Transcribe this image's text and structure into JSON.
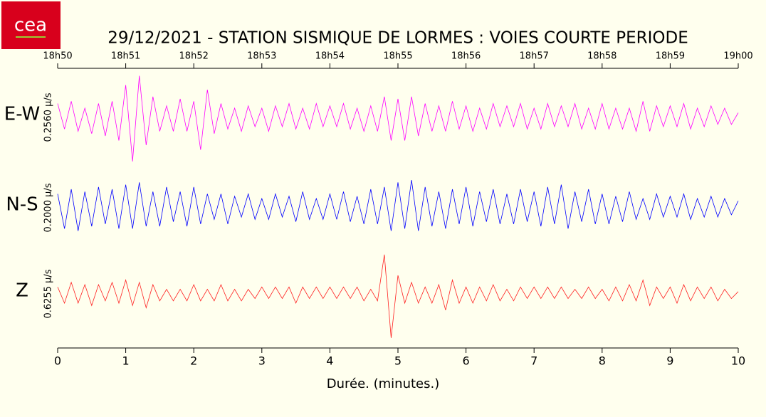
{
  "chart_data": {
    "type": "line",
    "logo": "cea",
    "title": "29/12/2021  -  STATION SISMIQUE DE LORMES : VOIES COURTE PERIODE",
    "xlabel": "Durée.  (minutes.)",
    "xlim": [
      0,
      10
    ],
    "xticks": [
      0,
      1,
      2,
      3,
      4,
      5,
      6,
      7,
      8,
      9,
      10
    ],
    "top_xticks": [
      {
        "value": 0,
        "label": "18h50"
      },
      {
        "value": 1,
        "label": "18h51"
      },
      {
        "value": 2,
        "label": "18h52"
      },
      {
        "value": 3,
        "label": "18h53"
      },
      {
        "value": 4,
        "label": "18h54"
      },
      {
        "value": 5,
        "label": "18h55"
      },
      {
        "value": 6,
        "label": "18h56"
      },
      {
        "value": 7,
        "label": "18h57"
      },
      {
        "value": 8,
        "label": "18h58"
      },
      {
        "value": 9,
        "label": "18h59"
      },
      {
        "value": 10,
        "label": "19h00"
      }
    ],
    "ylim": [
      -1,
      1
    ],
    "x": [
      0,
      0.1,
      0.2,
      0.3,
      0.4,
      0.5,
      0.6,
      0.7,
      0.8,
      0.9,
      1,
      1.1,
      1.2,
      1.3,
      1.4,
      1.5,
      1.6,
      1.7,
      1.8,
      1.9,
      2,
      2.1,
      2.2,
      2.3,
      2.4,
      2.5,
      2.6,
      2.7,
      2.8,
      2.9,
      3,
      3.1,
      3.2,
      3.3,
      3.4,
      3.5,
      3.6,
      3.7,
      3.8,
      3.9,
      4,
      4.1,
      4.2,
      4.3,
      4.4,
      4.5,
      4.6,
      4.7,
      4.8,
      4.9,
      5,
      5.1,
      5.2,
      5.3,
      5.4,
      5.5,
      5.6,
      5.7,
      5.8,
      5.9,
      6,
      6.1,
      6.2,
      6.3,
      6.4,
      6.5,
      6.6,
      6.7,
      6.8,
      6.9,
      7,
      7.1,
      7.2,
      7.3,
      7.4,
      7.5,
      7.6,
      7.7,
      7.8,
      7.9,
      8,
      8.1,
      8.2,
      8.3,
      8.4,
      8.5,
      8.6,
      8.7,
      8.8,
      8.9,
      9,
      9.1,
      9.2,
      9.3,
      9.4,
      9.5,
      9.6,
      9.7,
      9.8,
      9.9,
      10
    ],
    "series": [
      {
        "name": "E-W",
        "color": "#ff00ff",
        "scale_label": "0.2560 µ/s",
        "values": [
          0.3,
          -0.25,
          0.35,
          -0.3,
          0.2,
          -0.35,
          0.3,
          -0.4,
          0.35,
          -0.5,
          0.7,
          -0.95,
          0.9,
          -0.6,
          0.45,
          -0.3,
          0.25,
          -0.3,
          0.4,
          -0.3,
          0.35,
          -0.7,
          0.6,
          -0.35,
          0.3,
          -0.25,
          0.2,
          -0.3,
          0.25,
          -0.2,
          0.2,
          -0.3,
          0.25,
          -0.2,
          0.3,
          -0.25,
          0.2,
          -0.25,
          0.3,
          -0.2,
          0.25,
          -0.2,
          0.3,
          -0.25,
          0.2,
          -0.3,
          0.25,
          -0.3,
          0.45,
          -0.5,
          0.4,
          -0.5,
          0.45,
          -0.4,
          0.3,
          -0.3,
          0.25,
          -0.3,
          0.35,
          -0.25,
          0.25,
          -0.3,
          0.2,
          -0.25,
          0.3,
          -0.2,
          0.25,
          -0.2,
          0.3,
          -0.25,
          0.2,
          -0.25,
          0.3,
          -0.2,
          0.25,
          -0.2,
          0.3,
          -0.25,
          0.2,
          -0.25,
          0.3,
          -0.25,
          0.2,
          -0.25,
          0.2,
          -0.3,
          0.35,
          -0.3,
          0.25,
          -0.2,
          0.25,
          -0.2,
          0.3,
          -0.25,
          0.2,
          -0.2,
          0.25,
          -0.15,
          0.2,
          -0.15,
          0.1
        ]
      },
      {
        "name": "N-S",
        "color": "#0000ff",
        "scale_label": "0.2000 µ/s",
        "values": [
          0.3,
          -0.45,
          0.4,
          -0.5,
          0.35,
          -0.4,
          0.45,
          -0.35,
          0.4,
          -0.45,
          0.5,
          -0.45,
          0.55,
          -0.4,
          0.35,
          -0.4,
          0.45,
          -0.3,
          0.35,
          -0.4,
          0.45,
          -0.35,
          0.3,
          -0.25,
          0.3,
          -0.35,
          0.25,
          -0.2,
          0.3,
          -0.25,
          0.2,
          -0.25,
          0.3,
          -0.2,
          0.25,
          -0.3,
          0.35,
          -0.25,
          0.2,
          -0.25,
          0.3,
          -0.25,
          0.35,
          -0.3,
          0.25,
          -0.35,
          0.4,
          -0.35,
          0.45,
          -0.5,
          0.55,
          -0.45,
          0.6,
          -0.5,
          0.45,
          -0.4,
          0.35,
          -0.45,
          0.4,
          -0.35,
          0.45,
          -0.4,
          0.35,
          -0.3,
          0.4,
          -0.35,
          0.3,
          -0.35,
          0.4,
          -0.3,
          0.35,
          -0.4,
          0.45,
          -0.35,
          0.5,
          -0.45,
          0.35,
          -0.3,
          0.4,
          -0.35,
          0.3,
          -0.35,
          0.25,
          -0.3,
          0.35,
          -0.25,
          0.2,
          -0.25,
          0.3,
          -0.2,
          0.25,
          -0.2,
          0.3,
          -0.25,
          0.2,
          -0.2,
          0.25,
          -0.2,
          0.2,
          -0.15,
          0.15
        ]
      },
      {
        "name": "Z",
        "color": "#ff2020",
        "scale_label": "0.6255 µ/s",
        "values": [
          0.15,
          -0.2,
          0.25,
          -0.2,
          0.2,
          -0.25,
          0.2,
          -0.15,
          0.25,
          -0.2,
          0.3,
          -0.25,
          0.25,
          -0.3,
          0.2,
          -0.15,
          0.1,
          -0.15,
          0.1,
          -0.15,
          0.2,
          -0.15,
          0.1,
          -0.15,
          0.2,
          -0.15,
          0.1,
          -0.15,
          0.1,
          -0.1,
          0.15,
          -0.1,
          0.15,
          -0.1,
          0.15,
          -0.2,
          0.15,
          -0.1,
          0.15,
          -0.1,
          0.15,
          -0.1,
          0.15,
          -0.1,
          0.15,
          -0.15,
          0.1,
          -0.15,
          0.85,
          -0.95,
          0.4,
          -0.2,
          0.25,
          -0.2,
          0.15,
          -0.2,
          0.2,
          -0.35,
          0.3,
          -0.2,
          0.15,
          -0.2,
          0.15,
          -0.15,
          0.2,
          -0.15,
          0.1,
          -0.15,
          0.15,
          -0.1,
          0.15,
          -0.1,
          0.15,
          -0.1,
          0.15,
          -0.1,
          0.1,
          -0.1,
          0.15,
          -0.1,
          0.1,
          -0.15,
          0.15,
          -0.15,
          0.2,
          -0.15,
          0.3,
          -0.25,
          0.15,
          -0.1,
          0.15,
          -0.2,
          0.2,
          -0.15,
          0.15,
          -0.1,
          0.15,
          -0.15,
          0.1,
          -0.1,
          0.05
        ]
      }
    ]
  }
}
